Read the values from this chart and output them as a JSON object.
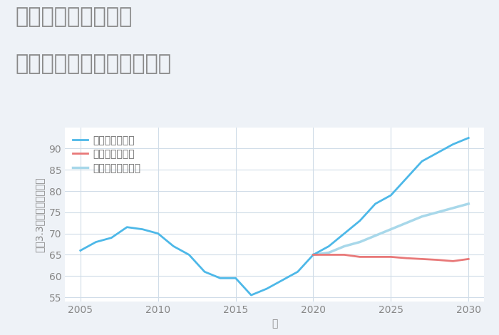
{
  "title_line1": "三重県鈴鹿市磯山の",
  "title_line2": "中古マンションの価格推移",
  "xlabel": "年",
  "ylabel": "坪（3.3㎡）単価（万円）",
  "background_color": "#eef2f7",
  "plot_bg_color": "#ffffff",
  "ylim": [
    54,
    95
  ],
  "yticks": [
    55,
    60,
    65,
    70,
    75,
    80,
    85,
    90
  ],
  "xlim": [
    2004,
    2031
  ],
  "xticks": [
    2005,
    2010,
    2015,
    2020,
    2025,
    2030
  ],
  "historical_years": [
    2005,
    2006,
    2007,
    2008,
    2009,
    2010,
    2011,
    2012,
    2013,
    2014,
    2015,
    2016,
    2017,
    2018,
    2019,
    2020
  ],
  "historical_values": [
    66,
    68,
    69,
    71.5,
    71,
    70,
    67,
    65,
    61,
    59.5,
    59.5,
    55.5,
    57,
    59,
    61,
    65
  ],
  "good_years": [
    2020,
    2021,
    2022,
    2023,
    2024,
    2025,
    2026,
    2027,
    2028,
    2029,
    2030
  ],
  "good_values": [
    65,
    67,
    70,
    73,
    77,
    79,
    83,
    87,
    89,
    91,
    92.5
  ],
  "bad_years": [
    2020,
    2021,
    2022,
    2023,
    2024,
    2025,
    2026,
    2027,
    2028,
    2029,
    2030
  ],
  "bad_values": [
    65,
    65,
    65,
    64.5,
    64.5,
    64.5,
    64.2,
    64,
    63.8,
    63.5,
    64
  ],
  "normal_years": [
    2020,
    2021,
    2022,
    2023,
    2024,
    2025,
    2026,
    2027,
    2028,
    2029,
    2030
  ],
  "normal_values": [
    65,
    65.5,
    67,
    68,
    69.5,
    71,
    72.5,
    74,
    75,
    76,
    77
  ],
  "color_good": "#4db8e8",
  "color_bad": "#e87878",
  "color_normal": "#a8d8ea",
  "color_historical": "#4db8e8",
  "legend_labels": [
    "グッドシナリオ",
    "バッドシナリオ",
    "ノーマルシナリオ"
  ],
  "title_color": "#888888",
  "grid_color": "#d0dce8",
  "line_width": 2.0,
  "title_fontsize": 22,
  "axis_label_fontsize": 10,
  "tick_fontsize": 10,
  "legend_fontsize": 10
}
